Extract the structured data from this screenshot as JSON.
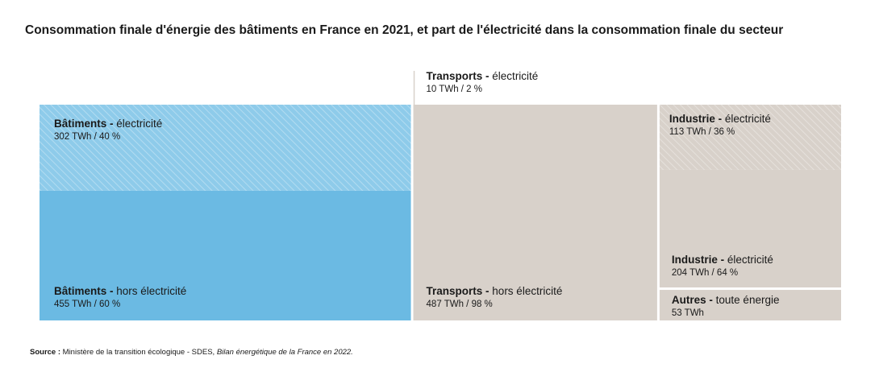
{
  "title": "Consommation finale d'énergie des bâtiments en France en 2021, et part de l'électricité dans la consommation finale du secteur",
  "source": {
    "label": "Source :",
    "text": " Ministère de la transition écologique - SDES, ",
    "publication": "Bilan énergétique de la France en 2022."
  },
  "colors": {
    "batiments_elec": "#8ecbea",
    "batiments_hors": "#6bbae3",
    "other_elec": "#ddd6cf",
    "other_hors": "#d8d1ca",
    "hatch": "#ffffff"
  },
  "chart_data": {
    "type": "treemap",
    "unit": "TWh",
    "segments": [
      {
        "sector": "Bâtiments",
        "part": "électricité",
        "value": 302,
        "share": 40,
        "value_label": "302 TWh / 40 %",
        "pattern": "hatched"
      },
      {
        "sector": "Bâtiments",
        "part": "hors électricité",
        "value": 455,
        "share": 60,
        "value_label": "455 TWh / 60 %",
        "pattern": "solid"
      },
      {
        "sector": "Transports",
        "part": "électricité",
        "value": 10,
        "share": 2,
        "value_label": "10 TWh / 2 %",
        "pattern": "hatched"
      },
      {
        "sector": "Transports",
        "part": "hors électricité",
        "value": 487,
        "share": 98,
        "value_label": "487 TWh / 98 %",
        "pattern": "solid"
      },
      {
        "sector": "Industrie",
        "part": "électricité",
        "value": 113,
        "share": 36,
        "value_label": "113 TWh / 36 %",
        "pattern": "hatched"
      },
      {
        "sector": "Industrie",
        "part": "électricité",
        "value": 204,
        "share": 64,
        "value_label": "204 TWh / 64 %",
        "pattern": "solid"
      },
      {
        "sector": "Autres",
        "part": "toute énergie",
        "value": 53,
        "share": null,
        "value_label": "53 TWh",
        "pattern": "solid"
      }
    ]
  }
}
